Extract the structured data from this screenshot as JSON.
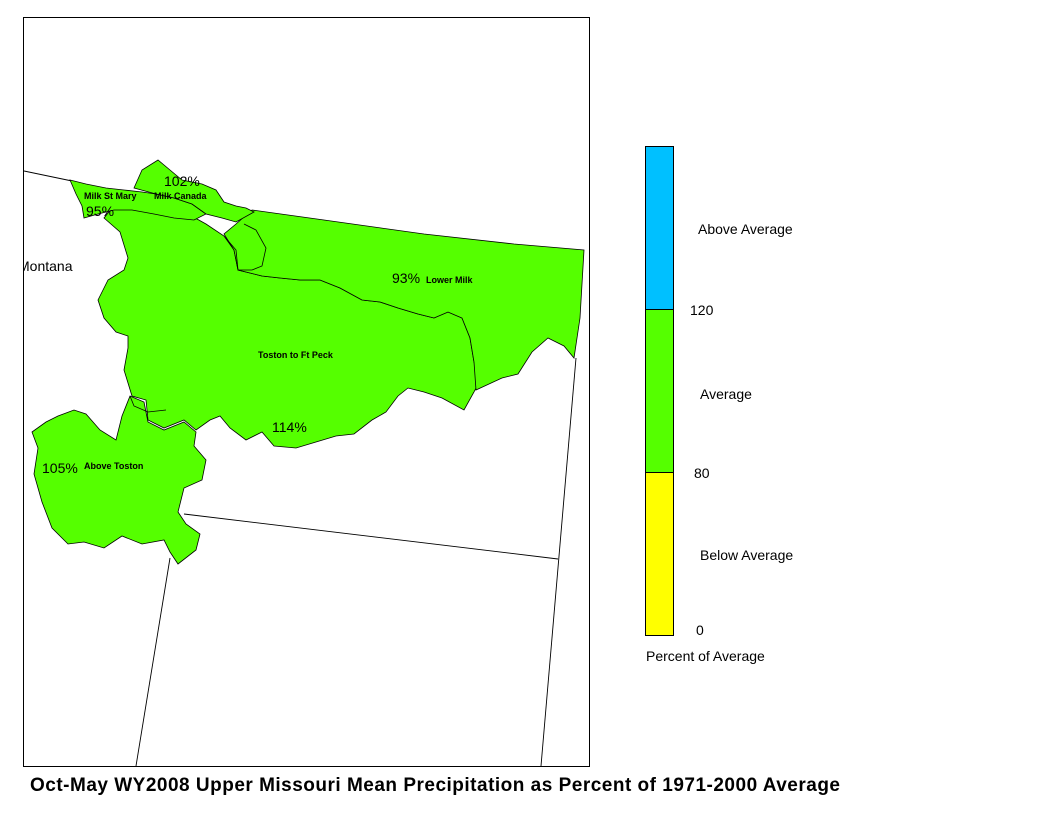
{
  "map": {
    "state_label": "Montana",
    "basins": [
      {
        "name": "Milk St Mary",
        "percent": "95%"
      },
      {
        "name": "Milk Canada",
        "percent": "102%"
      },
      {
        "name": "Lower Milk",
        "percent": "93%"
      },
      {
        "name": "Toston to Ft Peck",
        "percent": "114%"
      },
      {
        "name": "Above Toston",
        "percent": "105%"
      }
    ],
    "fill_color": "#55ff00"
  },
  "legend": {
    "categories": [
      {
        "label": "Above Average",
        "color": "#00c0ff"
      },
      {
        "label": "Average",
        "color": "#55ff00"
      },
      {
        "label": "Below Average",
        "color": "#ffff00"
      }
    ],
    "ticks": [
      "120",
      "80",
      "0"
    ],
    "caption": "Percent of Average"
  },
  "title": "Oct-May WY2008 Upper Missouri Mean Precipitation as Percent of 1971-2000 Average"
}
